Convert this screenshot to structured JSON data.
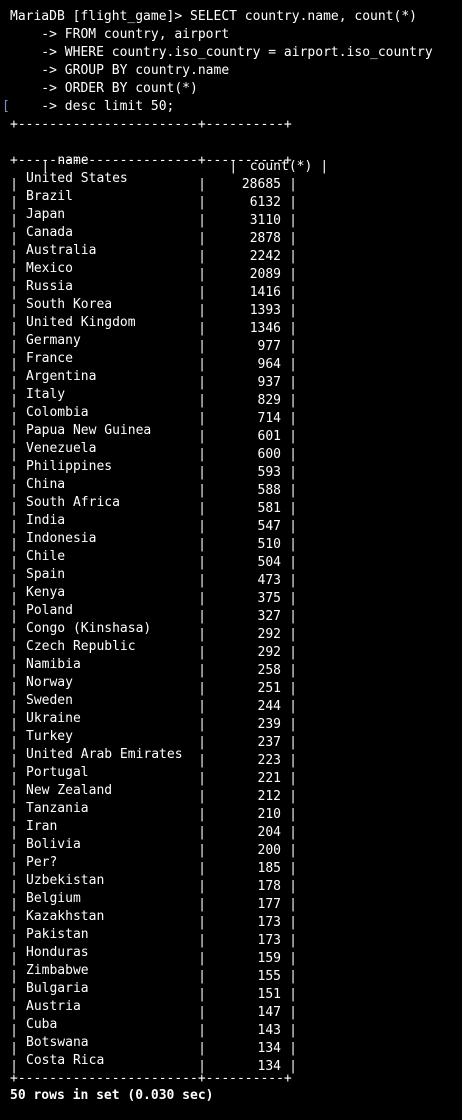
{
  "prompt": {
    "line1": "MariaDB [flight_game]> SELECT country.name, count(*)",
    "line2": "    -> FROM country, airport",
    "line3": "    -> WHERE country.iso_country = airport.iso_country",
    "line4": "    -> GROUP BY country.name",
    "line5": "    -> ORDER BY count(*)",
    "line6": "    -> desc limit 50;",
    "cursor_marker": "["
  },
  "table": {
    "border": "+-----------------------+----------+",
    "headers": [
      "name",
      "count(*)"
    ],
    "rows": [
      [
        "United States",
        "28685"
      ],
      [
        "Brazil",
        "6132"
      ],
      [
        "Japan",
        "3110"
      ],
      [
        "Canada",
        "2878"
      ],
      [
        "Australia",
        "2242"
      ],
      [
        "Mexico",
        "2089"
      ],
      [
        "Russia",
        "1416"
      ],
      [
        "South Korea",
        "1393"
      ],
      [
        "United Kingdom",
        "1346"
      ],
      [
        "Germany",
        "977"
      ],
      [
        "France",
        "964"
      ],
      [
        "Argentina",
        "937"
      ],
      [
        "Italy",
        "829"
      ],
      [
        "Colombia",
        "714"
      ],
      [
        "Papua New Guinea",
        "601"
      ],
      [
        "Venezuela",
        "600"
      ],
      [
        "Philippines",
        "593"
      ],
      [
        "China",
        "588"
      ],
      [
        "South Africa",
        "581"
      ],
      [
        "India",
        "547"
      ],
      [
        "Indonesia",
        "510"
      ],
      [
        "Chile",
        "504"
      ],
      [
        "Spain",
        "473"
      ],
      [
        "Kenya",
        "375"
      ],
      [
        "Poland",
        "327"
      ],
      [
        "Congo (Kinshasa)",
        "292"
      ],
      [
        "Czech Republic",
        "292"
      ],
      [
        "Namibia",
        "258"
      ],
      [
        "Norway",
        "251"
      ],
      [
        "Sweden",
        "244"
      ],
      [
        "Ukraine",
        "239"
      ],
      [
        "Turkey",
        "237"
      ],
      [
        "United Arab Emirates",
        "223"
      ],
      [
        "Portugal",
        "221"
      ],
      [
        "New Zealand",
        "212"
      ],
      [
        "Tanzania",
        "210"
      ],
      [
        "Iran",
        "204"
      ],
      [
        "Bolivia",
        "200"
      ],
      [
        "Per?",
        "185"
      ],
      [
        "Uzbekistan",
        "178"
      ],
      [
        "Belgium",
        "177"
      ],
      [
        "Kazakhstan",
        "173"
      ],
      [
        "Pakistan",
        "173"
      ],
      [
        "Honduras",
        "159"
      ],
      [
        "Zimbabwe",
        "155"
      ],
      [
        "Bulgaria",
        "151"
      ],
      [
        "Austria",
        "147"
      ],
      [
        "Cuba",
        "143"
      ],
      [
        "Botswana",
        "134"
      ],
      [
        "Costa Rica",
        "134"
      ]
    ]
  },
  "status": "50 rows in set (0.030 sec)",
  "colors": {
    "background": "#000000",
    "text": "#ffffff",
    "cursor_marker": "#6b8cff"
  }
}
